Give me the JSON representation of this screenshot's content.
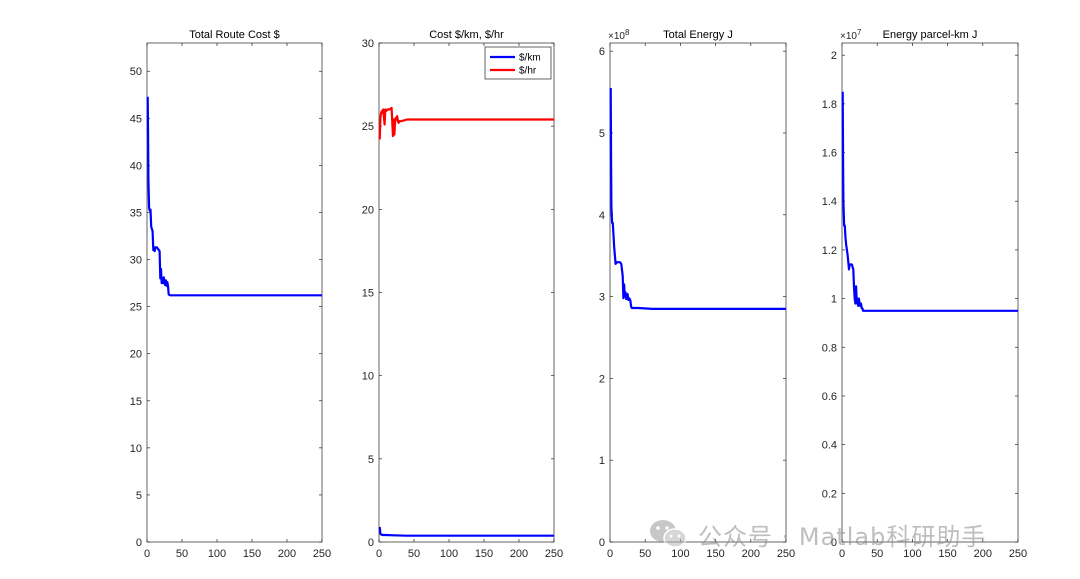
{
  "chart_data": [
    {
      "type": "line",
      "title": "Total Route Cost $",
      "xlim": [
        0,
        250
      ],
      "ylim": [
        0,
        53
      ],
      "xticks": [
        0,
        50,
        100,
        150,
        200,
        250
      ],
      "yticks": [
        0,
        5,
        10,
        15,
        20,
        25,
        30,
        35,
        40,
        45,
        50
      ],
      "series": [
        {
          "color": "#0000ff",
          "x": [
            1,
            1.5,
            2,
            3,
            4,
            5,
            6,
            8,
            9,
            10,
            11,
            12,
            14,
            15,
            18,
            19,
            20,
            21,
            22,
            23,
            24,
            25,
            26,
            27,
            28,
            29,
            30,
            31,
            33,
            40,
            60,
            100,
            150,
            200,
            250
          ],
          "y": [
            47.3,
            43,
            38.5,
            35.5,
            35.2,
            35.3,
            33.5,
            33,
            31,
            31.3,
            30.9,
            31.3,
            31.3,
            31.2,
            30.9,
            28,
            29,
            27.5,
            27.9,
            27.5,
            28.1,
            27.5,
            27.3,
            27.8,
            27.2,
            27.6,
            27.2,
            26.3,
            26.2,
            26.2,
            26.2,
            26.2,
            26.2,
            26.2,
            26.2
          ]
        }
      ]
    },
    {
      "type": "line",
      "title": "Cost $/km, $/hr",
      "xlim": [
        0,
        250
      ],
      "ylim": [
        0,
        30
      ],
      "xticks": [
        0,
        50,
        100,
        150,
        200,
        250
      ],
      "yticks": [
        0,
        5,
        10,
        15,
        20,
        25,
        30
      ],
      "legend": {
        "location": "top-right",
        "entries": [
          "$/km",
          "$/hr"
        ]
      },
      "series": [
        {
          "name": "$/km",
          "color": "#0000ff",
          "x": [
            1,
            2,
            3,
            5,
            10,
            20,
            40,
            100,
            150,
            200,
            250
          ],
          "y": [
            0.9,
            0.5,
            0.45,
            0.42,
            0.42,
            0.4,
            0.38,
            0.38,
            0.38,
            0.38,
            0.38
          ]
        },
        {
          "name": "$/hr",
          "color": "#ff0000",
          "x": [
            1,
            2,
            3,
            4,
            5,
            6,
            8,
            9,
            10,
            12,
            15,
            18,
            19,
            20,
            21,
            22,
            23,
            24,
            25,
            26,
            27,
            28,
            29,
            30,
            32,
            40,
            50,
            100,
            150,
            200,
            250
          ],
          "y": [
            24.2,
            25.5,
            25.8,
            25.9,
            25.8,
            26.0,
            25.1,
            26.0,
            25.9,
            26.0,
            26.0,
            26.1,
            25.2,
            24.4,
            25.4,
            24.5,
            25.3,
            25.5,
            25.4,
            25.6,
            25.3,
            25.2,
            25.3,
            25.3,
            25.3,
            25.4,
            25.4,
            25.4,
            25.4,
            25.4,
            25.4
          ]
        }
      ]
    },
    {
      "type": "line",
      "title": "Total Energy J",
      "y_exponent": "×10",
      "y_exponent_power": "8",
      "xlim": [
        0,
        250
      ],
      "ylim": [
        0,
        6.1
      ],
      "xticks": [
        0,
        50,
        100,
        150,
        200,
        250
      ],
      "yticks": [
        0,
        1,
        2,
        3,
        4,
        5,
        6
      ],
      "series": [
        {
          "color": "#0000ff",
          "x": [
            1,
            1.5,
            2,
            3,
            4,
            5,
            6,
            8,
            10,
            12,
            14,
            16,
            18,
            19,
            20,
            21,
            22,
            23,
            24,
            25,
            26,
            27,
            28,
            29,
            30,
            31,
            33,
            40,
            60,
            100,
            150,
            200,
            250
          ],
          "y": [
            5.55,
            4.6,
            4.1,
            3.9,
            3.9,
            3.75,
            3.6,
            3.4,
            3.42,
            3.42,
            3.42,
            3.4,
            3.25,
            2.98,
            3.15,
            3.0,
            3.05,
            2.97,
            3.02,
            3.03,
            2.96,
            2.98,
            2.97,
            2.95,
            2.88,
            2.86,
            2.86,
            2.86,
            2.85,
            2.85,
            2.85,
            2.85,
            2.85
          ]
        }
      ]
    },
    {
      "type": "line",
      "title": "Energy parcel-km J",
      "y_exponent": "×10",
      "y_exponent_power": "7",
      "xlim": [
        0,
        250
      ],
      "ylim": [
        0,
        2.05
      ],
      "xticks": [
        0,
        50,
        100,
        150,
        200,
        250
      ],
      "yticks": [
        0,
        0.2,
        0.4,
        0.6,
        0.8,
        1,
        1.2,
        1.4,
        1.6,
        1.8,
        2
      ],
      "series": [
        {
          "color": "#0000ff",
          "x": [
            1,
            1.5,
            2,
            3,
            4,
            5,
            6,
            8,
            10,
            11,
            12,
            14,
            16,
            17,
            18,
            19,
            20,
            21,
            22,
            23,
            24,
            25,
            26,
            27,
            28,
            29,
            30,
            31,
            33,
            40,
            60,
            100,
            150,
            200,
            250
          ],
          "y": [
            1.85,
            1.55,
            1.4,
            1.3,
            1.3,
            1.25,
            1.22,
            1.18,
            1.12,
            1.14,
            1.14,
            1.14,
            1.12,
            1.05,
            1.0,
            0.98,
            1.05,
            0.98,
            1.0,
            0.97,
            1.0,
            0.98,
            0.97,
            0.98,
            0.96,
            0.96,
            0.95,
            0.95,
            0.95,
            0.95,
            0.95,
            0.95,
            0.95,
            0.95,
            0.95
          ]
        }
      ]
    }
  ],
  "watermark": {
    "text": "公众号 · Matlab科研助手",
    "icon": "wechat-icon"
  }
}
